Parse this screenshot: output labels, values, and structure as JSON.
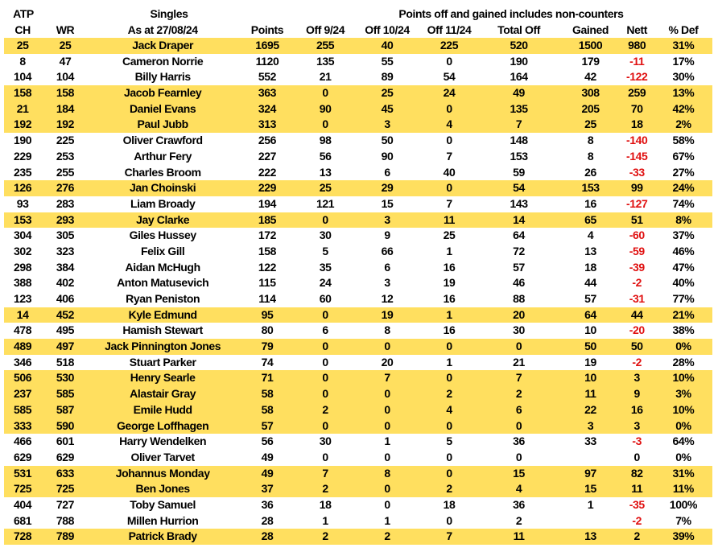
{
  "header": {
    "row1": {
      "atp": "ATP",
      "singles": "Singles",
      "note": "Points off and gained includes non-counters"
    },
    "row2": [
      "CH",
      "WR",
      "As at 27/08/24",
      "Points",
      "Off 9/24",
      "Off 10/24",
      "Off 11/24",
      "Total Off",
      "Gained",
      "Nett",
      "% Def"
    ]
  },
  "colors": {
    "highlight": "#FFDF5F",
    "negative": "#E01010"
  },
  "rows": [
    {
      "ch": "25",
      "wr": "25",
      "name": "Jack Draper",
      "points": "1695",
      "off9": "255",
      "off10": "40",
      "off11": "225",
      "total": "520",
      "gained": "1500",
      "nett": "980",
      "def": "31%",
      "highlight": true
    },
    {
      "ch": "8",
      "wr": "47",
      "name": "Cameron Norrie",
      "points": "1120",
      "off9": "135",
      "off10": "55",
      "off11": "0",
      "total": "190",
      "gained": "179",
      "nett": "-11",
      "def": "17%",
      "highlight": false
    },
    {
      "ch": "104",
      "wr": "104",
      "name": "Billy Harris",
      "points": "552",
      "off9": "21",
      "off10": "89",
      "off11": "54",
      "total": "164",
      "gained": "42",
      "nett": "-122",
      "def": "30%",
      "highlight": false
    },
    {
      "ch": "158",
      "wr": "158",
      "name": "Jacob Fearnley",
      "points": "363",
      "off9": "0",
      "off10": "25",
      "off11": "24",
      "total": "49",
      "gained": "308",
      "nett": "259",
      "def": "13%",
      "highlight": true
    },
    {
      "ch": "21",
      "wr": "184",
      "name": "Daniel Evans",
      "points": "324",
      "off9": "90",
      "off10": "45",
      "off11": "0",
      "total": "135",
      "gained": "205",
      "nett": "70",
      "def": "42%",
      "highlight": true
    },
    {
      "ch": "192",
      "wr": "192",
      "name": "Paul Jubb",
      "points": "313",
      "off9": "0",
      "off10": "3",
      "off11": "4",
      "total": "7",
      "gained": "25",
      "nett": "18",
      "def": "2%",
      "highlight": true
    },
    {
      "ch": "190",
      "wr": "225",
      "name": "Oliver Crawford",
      "points": "256",
      "off9": "98",
      "off10": "50",
      "off11": "0",
      "total": "148",
      "gained": "8",
      "nett": "-140",
      "def": "58%",
      "highlight": false
    },
    {
      "ch": "229",
      "wr": "253",
      "name": "Arthur Fery",
      "points": "227",
      "off9": "56",
      "off10": "90",
      "off11": "7",
      "total": "153",
      "gained": "8",
      "nett": "-145",
      "def": "67%",
      "highlight": false
    },
    {
      "ch": "235",
      "wr": "255",
      "name": "Charles Broom",
      "points": "222",
      "off9": "13",
      "off10": "6",
      "off11": "40",
      "total": "59",
      "gained": "26",
      "nett": "-33",
      "def": "27%",
      "highlight": false
    },
    {
      "ch": "126",
      "wr": "276",
      "name": "Jan Choinski",
      "points": "229",
      "off9": "25",
      "off10": "29",
      "off11": "0",
      "total": "54",
      "gained": "153",
      "nett": "99",
      "def": "24%",
      "highlight": true
    },
    {
      "ch": "93",
      "wr": "283",
      "name": "Liam Broady",
      "points": "194",
      "off9": "121",
      "off10": "15",
      "off11": "7",
      "total": "143",
      "gained": "16",
      "nett": "-127",
      "def": "74%",
      "highlight": false
    },
    {
      "ch": "153",
      "wr": "293",
      "name": "Jay Clarke",
      "points": "185",
      "off9": "0",
      "off10": "3",
      "off11": "11",
      "total": "14",
      "gained": "65",
      "nett": "51",
      "def": "8%",
      "highlight": true
    },
    {
      "ch": "304",
      "wr": "305",
      "name": "Giles Hussey",
      "points": "172",
      "off9": "30",
      "off10": "9",
      "off11": "25",
      "total": "64",
      "gained": "4",
      "nett": "-60",
      "def": "37%",
      "highlight": false
    },
    {
      "ch": "302",
      "wr": "323",
      "name": "Felix Gill",
      "points": "158",
      "off9": "5",
      "off10": "66",
      "off11": "1",
      "total": "72",
      "gained": "13",
      "nett": "-59",
      "def": "46%",
      "highlight": false
    },
    {
      "ch": "298",
      "wr": "384",
      "name": "Aidan McHugh",
      "points": "122",
      "off9": "35",
      "off10": "6",
      "off11": "16",
      "total": "57",
      "gained": "18",
      "nett": "-39",
      "def": "47%",
      "highlight": false
    },
    {
      "ch": "388",
      "wr": "402",
      "name": "Anton Matusevich",
      "points": "115",
      "off9": "24",
      "off10": "3",
      "off11": "19",
      "total": "46",
      "gained": "44",
      "nett": "-2",
      "def": "40%",
      "highlight": false
    },
    {
      "ch": "123",
      "wr": "406",
      "name": "Ryan Peniston",
      "points": "114",
      "off9": "60",
      "off10": "12",
      "off11": "16",
      "total": "88",
      "gained": "57",
      "nett": "-31",
      "def": "77%",
      "highlight": false
    },
    {
      "ch": "14",
      "wr": "452",
      "name": "Kyle Edmund",
      "points": "95",
      "off9": "0",
      "off10": "19",
      "off11": "1",
      "total": "20",
      "gained": "64",
      "nett": "44",
      "def": "21%",
      "highlight": true
    },
    {
      "ch": "478",
      "wr": "495",
      "name": "Hamish Stewart",
      "points": "80",
      "off9": "6",
      "off10": "8",
      "off11": "16",
      "total": "30",
      "gained": "10",
      "nett": "-20",
      "def": "38%",
      "highlight": false
    },
    {
      "ch": "489",
      "wr": "497",
      "name": "Jack Pinnington Jones",
      "points": "79",
      "off9": "0",
      "off10": "0",
      "off11": "0",
      "total": "0",
      "gained": "50",
      "nett": "50",
      "def": "0%",
      "highlight": true
    },
    {
      "ch": "346",
      "wr": "518",
      "name": "Stuart Parker",
      "points": "74",
      "off9": "0",
      "off10": "20",
      "off11": "1",
      "total": "21",
      "gained": "19",
      "nett": "-2",
      "def": "28%",
      "highlight": false
    },
    {
      "ch": "506",
      "wr": "530",
      "name": "Henry Searle",
      "points": "71",
      "off9": "0",
      "off10": "7",
      "off11": "0",
      "total": "7",
      "gained": "10",
      "nett": "3",
      "def": "10%",
      "highlight": true
    },
    {
      "ch": "237",
      "wr": "585",
      "name": "Alastair Gray",
      "points": "58",
      "off9": "0",
      "off10": "0",
      "off11": "2",
      "total": "2",
      "gained": "11",
      "nett": "9",
      "def": "3%",
      "highlight": true
    },
    {
      "ch": "585",
      "wr": "587",
      "name": "Emile Hudd",
      "points": "58",
      "off9": "2",
      "off10": "0",
      "off11": "4",
      "total": "6",
      "gained": "22",
      "nett": "16",
      "def": "10%",
      "highlight": true
    },
    {
      "ch": "333",
      "wr": "590",
      "name": "George Loffhagen",
      "points": "57",
      "off9": "0",
      "off10": "0",
      "off11": "0",
      "total": "0",
      "gained": "3",
      "nett": "3",
      "def": "0%",
      "highlight": true
    },
    {
      "ch": "466",
      "wr": "601",
      "name": "Harry Wendelken",
      "points": "56",
      "off9": "30",
      "off10": "1",
      "off11": "5",
      "total": "36",
      "gained": "33",
      "nett": "-3",
      "def": "64%",
      "highlight": false
    },
    {
      "ch": "629",
      "wr": "629",
      "name": "Oliver Tarvet",
      "points": "49",
      "off9": "0",
      "off10": "0",
      "off11": "0",
      "total": "0",
      "gained": "",
      "nett": "0",
      "def": "0%",
      "highlight": false
    },
    {
      "ch": "531",
      "wr": "633",
      "name": "Johannus Monday",
      "points": "49",
      "off9": "7",
      "off10": "8",
      "off11": "0",
      "total": "15",
      "gained": "97",
      "nett": "82",
      "def": "31%",
      "highlight": true
    },
    {
      "ch": "725",
      "wr": "725",
      "name": "Ben Jones",
      "points": "37",
      "off9": "2",
      "off10": "0",
      "off11": "2",
      "total": "4",
      "gained": "15",
      "nett": "11",
      "def": "11%",
      "highlight": true
    },
    {
      "ch": "404",
      "wr": "727",
      "name": "Toby Samuel",
      "points": "36",
      "off9": "18",
      "off10": "0",
      "off11": "18",
      "total": "36",
      "gained": "1",
      "nett": "-35",
      "def": "100%",
      "highlight": false
    },
    {
      "ch": "681",
      "wr": "788",
      "name": "Millen Hurrion",
      "points": "28",
      "off9": "1",
      "off10": "1",
      "off11": "0",
      "total": "2",
      "gained": "",
      "nett": "-2",
      "def": "7%",
      "highlight": false
    },
    {
      "ch": "728",
      "wr": "789",
      "name": "Patrick Brady",
      "points": "28",
      "off9": "2",
      "off10": "2",
      "off11": "7",
      "total": "11",
      "gained": "13",
      "nett": "2",
      "def": "39%",
      "highlight": true
    }
  ]
}
